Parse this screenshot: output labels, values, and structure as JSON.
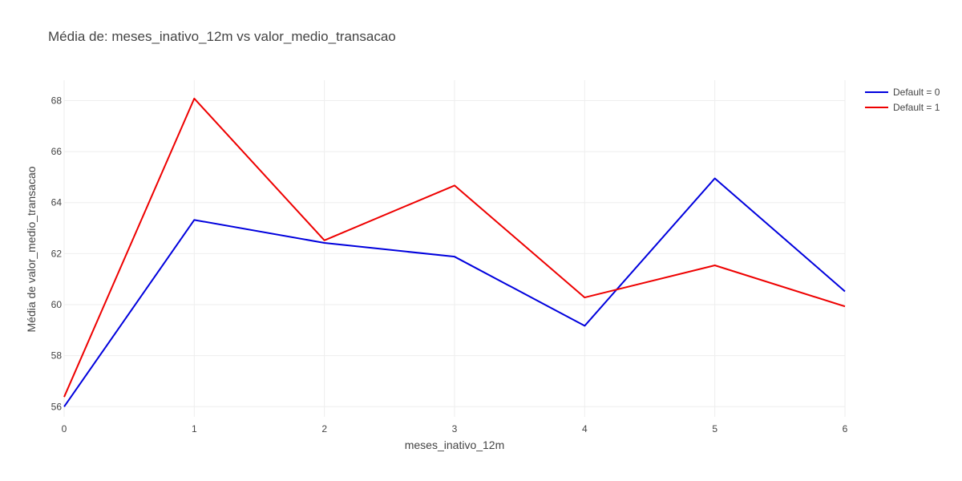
{
  "chart_data": {
    "type": "line",
    "title": "Média de: meses_inativo_12m vs valor_medio_transacao",
    "xlabel": "meses_inativo_12m",
    "ylabel": "Média de valor_medio_transacao",
    "x": [
      0,
      1,
      2,
      3,
      4,
      5,
      6
    ],
    "xlim": [
      0,
      6
    ],
    "ylim": [
      55.6,
      68.8
    ],
    "yticks": [
      56,
      58,
      60,
      62,
      64,
      66,
      68
    ],
    "xticks": [
      0,
      1,
      2,
      3,
      4,
      5,
      6
    ],
    "grid": true,
    "legend_position": "top-right",
    "series": [
      {
        "name": "Default = 0",
        "color": "#0000dd",
        "values": [
          56.0,
          63.32,
          62.42,
          61.88,
          59.17,
          64.95,
          60.52
        ]
      },
      {
        "name": "Default = 1",
        "color": "#ee0000",
        "values": [
          56.38,
          68.08,
          62.52,
          64.67,
          60.28,
          61.54,
          59.93
        ]
      }
    ]
  }
}
